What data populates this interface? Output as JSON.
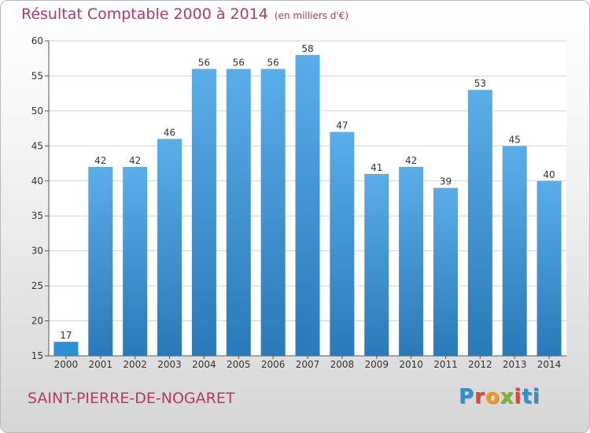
{
  "header": {
    "title": "Résultat Comptable 2000 à 2014",
    "unit": "(en milliers d'€)"
  },
  "footer": {
    "commune": "SAINT-PIERRE-DE-NOGARET",
    "logo": [
      "P",
      "r",
      "o",
      "x",
      "i",
      "ti"
    ]
  },
  "colors": {
    "title": "#b03a68",
    "bar_top": "#5aaee8",
    "bar_bottom": "#2a79b8",
    "bar_low": "#2f8fd6"
  },
  "chart_data": {
    "type": "bar",
    "title": "Résultat Comptable 2000 à 2014",
    "subtitle": "(en milliers d'€)",
    "xlabel": "",
    "ylabel": "",
    "categories": [
      "2000",
      "2001",
      "2002",
      "2003",
      "2004",
      "2005",
      "2006",
      "2007",
      "2008",
      "2009",
      "2010",
      "2011",
      "2012",
      "2013",
      "2014"
    ],
    "values": [
      17,
      42,
      42,
      46,
      56,
      56,
      56,
      58,
      47,
      41,
      42,
      39,
      53,
      45,
      40
    ],
    "ylim": [
      15,
      60
    ],
    "yticks": [
      15,
      20,
      25,
      30,
      35,
      40,
      45,
      50,
      55,
      60
    ],
    "grid": true,
    "legend": "none"
  }
}
